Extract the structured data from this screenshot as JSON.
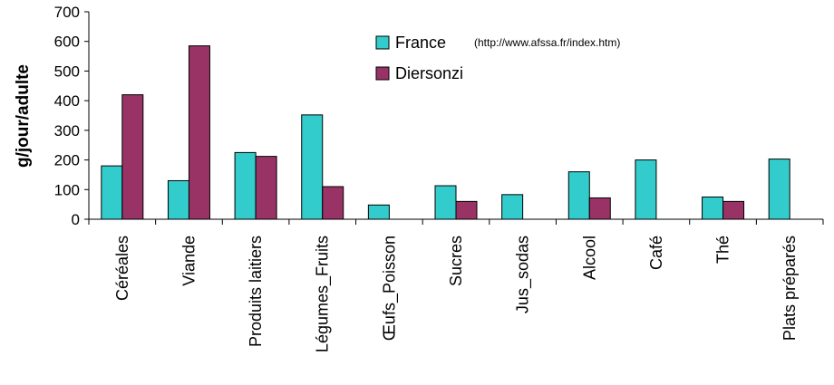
{
  "chart_data": {
    "type": "bar",
    "categories": [
      "Céréales",
      "Viande",
      "Produits laitiers",
      "Légumes_Fruits",
      "Œufs_Poisson",
      "Sucres",
      "Jus_sodas",
      "Alcool",
      "Café",
      "Thé",
      "Plats préparés"
    ],
    "series": [
      {
        "name": "France",
        "color": "#33cccc",
        "values": [
          180,
          130,
          225,
          352,
          48,
          113,
          83,
          160,
          200,
          75,
          203
        ]
      },
      {
        "name": "Diersonzi",
        "color": "#993366",
        "values": [
          420,
          585,
          212,
          110,
          0,
          60,
          0,
          72,
          0,
          60,
          0
        ]
      }
    ],
    "ylabel": "g/jour/adulte",
    "ylim": [
      0,
      700
    ],
    "yticks": [
      0,
      100,
      200,
      300,
      400,
      500,
      600,
      700
    ],
    "legend_position": "top-center",
    "annotation": "(http://www.afssa.fr/index.htm)",
    "grid": false
  }
}
